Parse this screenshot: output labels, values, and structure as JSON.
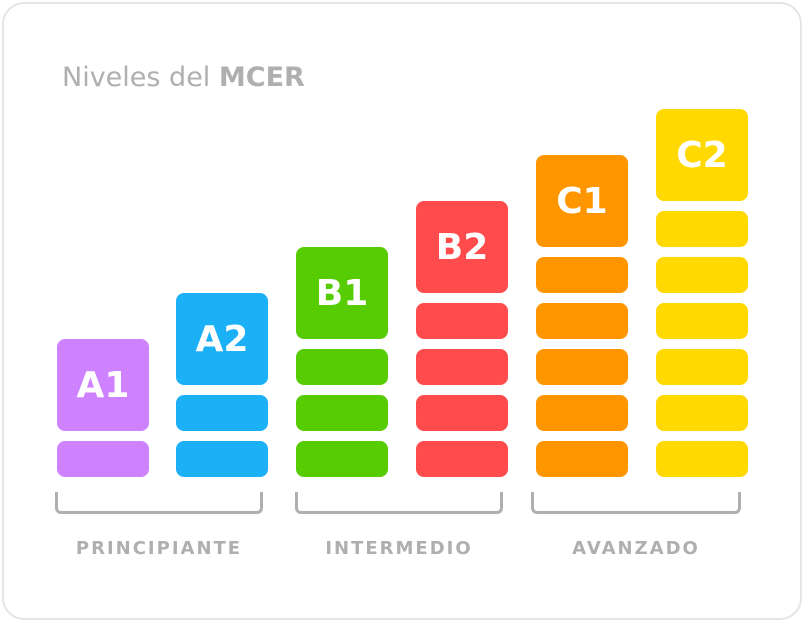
{
  "title": {
    "prefix": "Niveles del",
    "strong": "MCER"
  },
  "levels": [
    {
      "code": "A1",
      "color": "#ce82ff",
      "slabs": 1
    },
    {
      "code": "A2",
      "color": "#1cb0f6",
      "slabs": 2
    },
    {
      "code": "B1",
      "color": "#58cc02",
      "slabs": 3
    },
    {
      "code": "B2",
      "color": "#ff4b4b",
      "slabs": 4
    },
    {
      "code": "C1",
      "color": "#ff9600",
      "slabs": 5
    },
    {
      "code": "C2",
      "color": "#ffd900",
      "slabs": 6
    }
  ],
  "groups": [
    {
      "label": "PRINCIPIANTE",
      "levels": [
        "A1",
        "A2"
      ]
    },
    {
      "label": "INTERMEDIO",
      "levels": [
        "B1",
        "B2"
      ]
    },
    {
      "label": "AVANZADO",
      "levels": [
        "C1",
        "C2"
      ]
    }
  ]
}
